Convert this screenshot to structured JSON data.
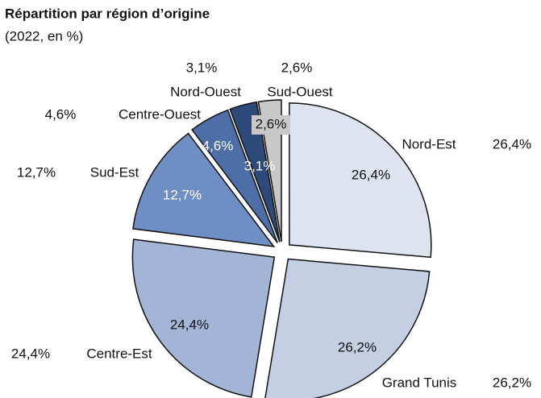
{
  "chart_data": {
    "type": "pie",
    "title": "Répartition par région d’origine",
    "subtitle": "(2022, en %)",
    "categories": [
      "Nord-Est",
      "Grand Tunis",
      "Centre-Est",
      "Sud-Est",
      "Centre-Ouest",
      "Nord-Ouest",
      "Sud-Ouest"
    ],
    "values": [
      26.4,
      26.2,
      24.4,
      12.7,
      4.6,
      3.1,
      2.6
    ],
    "value_labels": [
      "26,4%",
      "26,2%",
      "24,4%",
      "12,7%",
      "4,6%",
      "3,1%",
      "2,6%"
    ],
    "colors": [
      "#dde4f0",
      "#c4cfe4",
      "#a3b5d6",
      "#6f8fc4",
      "#4e6ea8",
      "#2e4a7a",
      "#c8c8c8"
    ]
  }
}
